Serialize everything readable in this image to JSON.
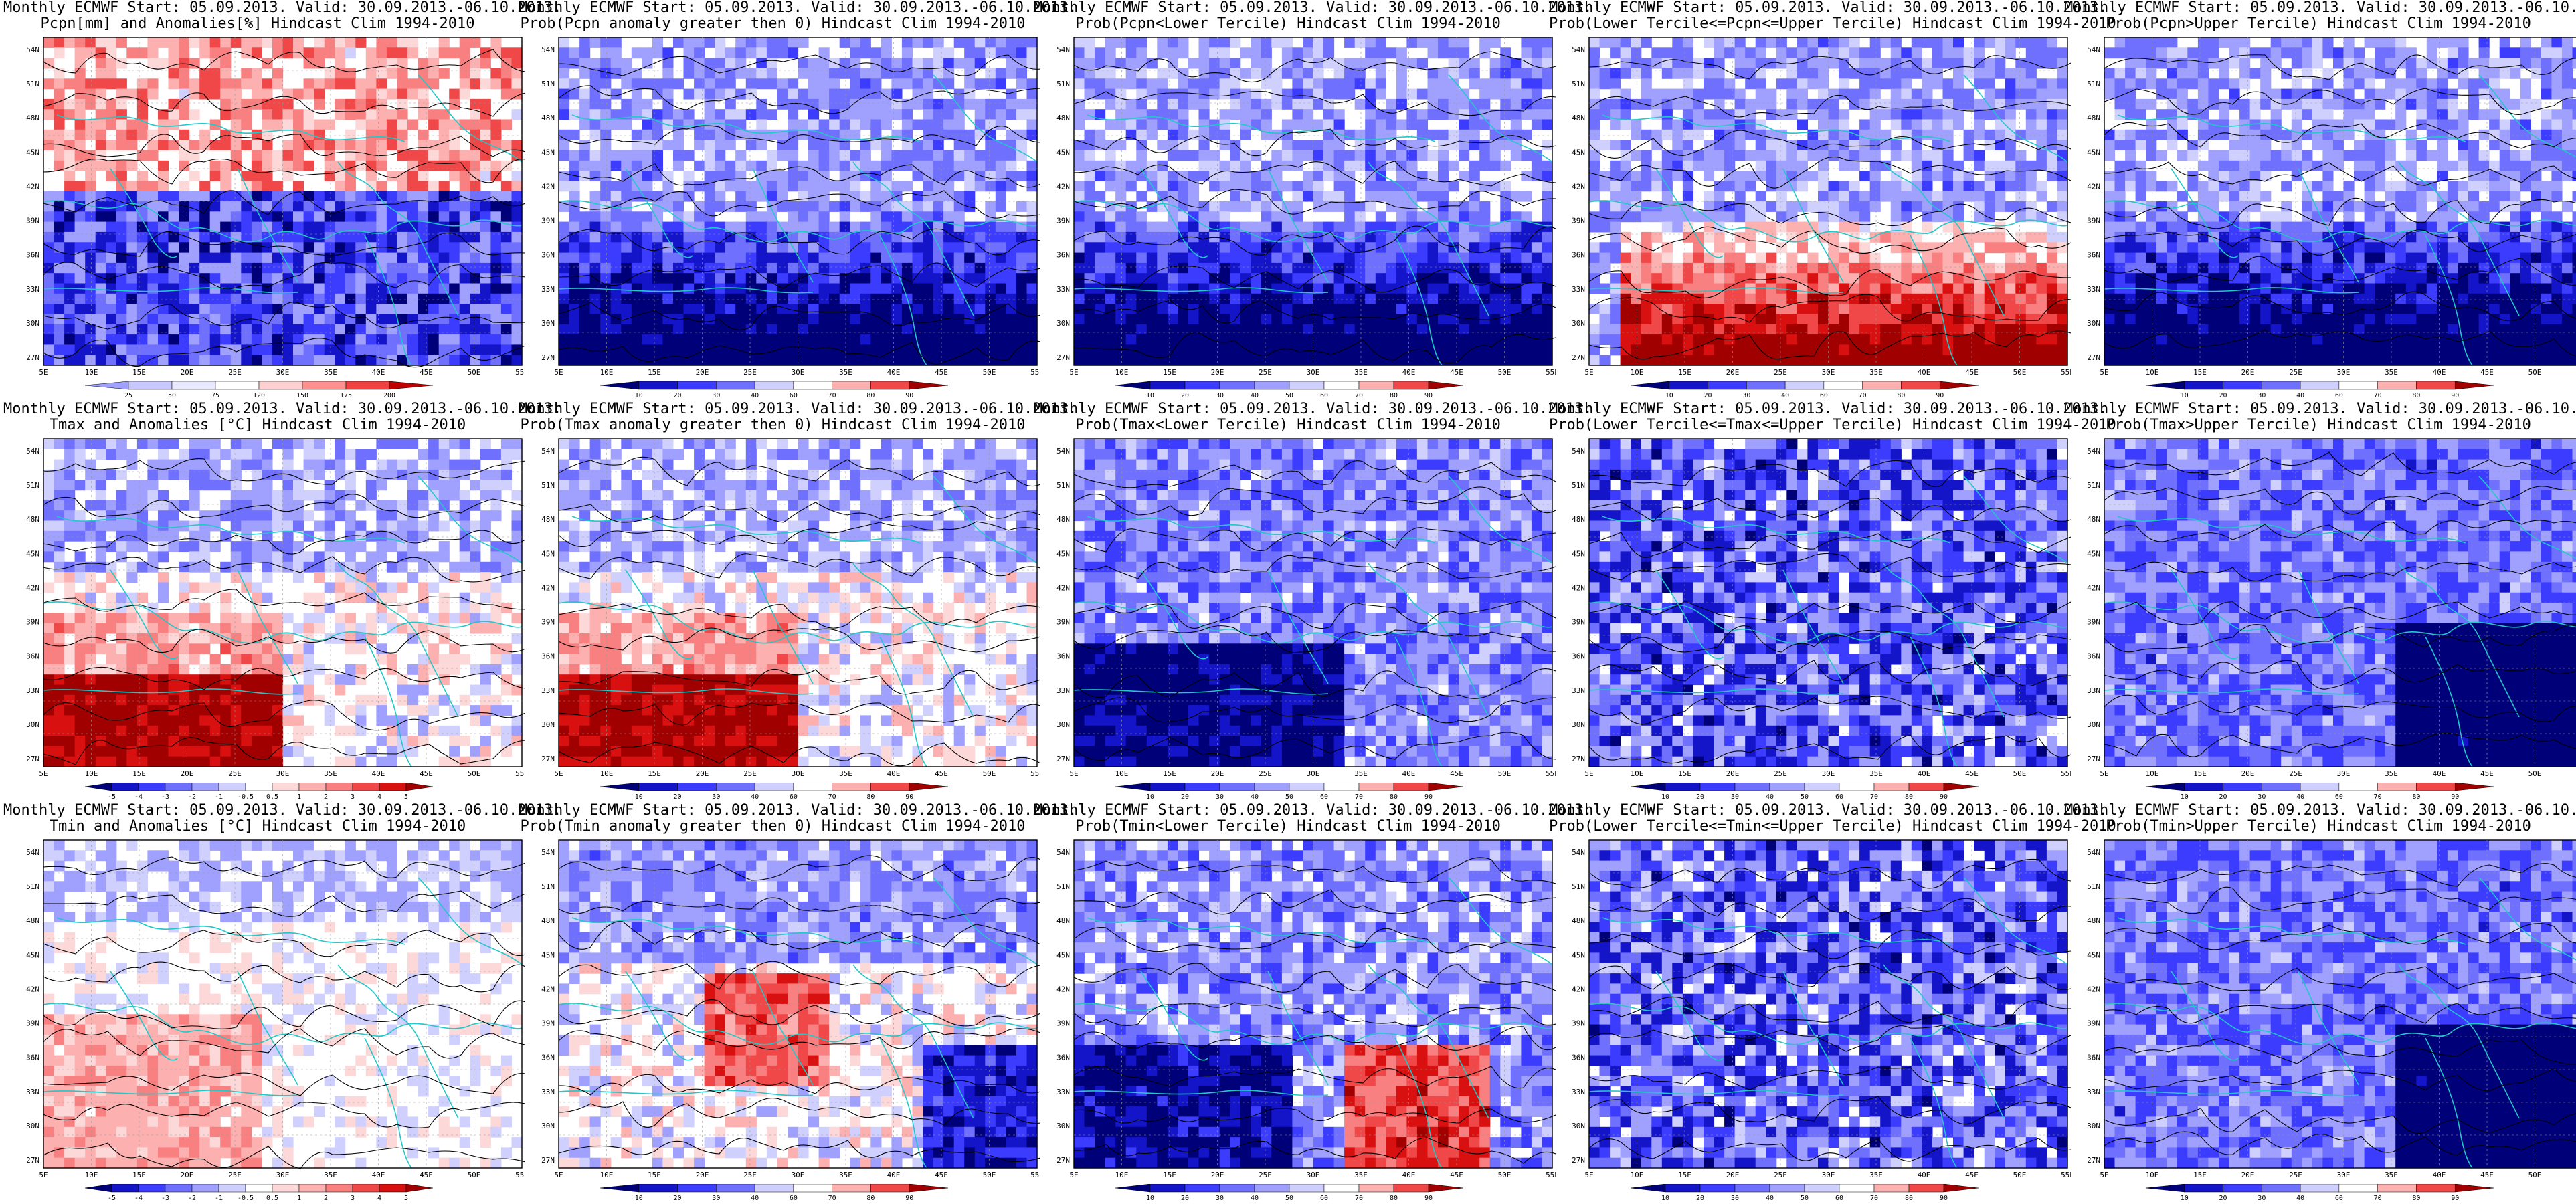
{
  "common": {
    "line1": "Monthly ECMWF Start: 05.09.2013. Valid: 30.09.2013.-06.10.2013.",
    "lat_labels": [
      "54N",
      "51N",
      "48N",
      "45N",
      "42N",
      "39N",
      "36N",
      "33N",
      "30N",
      "27N"
    ],
    "lon_labels": [
      "5E",
      "10E",
      "15E",
      "20E",
      "25E",
      "30E",
      "35E",
      "40E",
      "45E",
      "50E",
      "55E"
    ]
  },
  "rows": [
    {
      "variable": "Pcpn",
      "panels": [
        {
          "line2": "Pcpn[mm] and Anomalies[%] Hindcast Clim 1994-2010",
          "palette": "anomaly",
          "bias": "mixed",
          "cbar_labels": [
            "25",
            "50",
            "75",
            "120",
            "150",
            "175",
            "200"
          ]
        },
        {
          "line2": "Prob(Pcpn anomaly greater then 0) Hindcast Clim 1994-2010",
          "palette": "prob",
          "bias": "blue-south",
          "cbar_labels": [
            "10",
            "20",
            "30",
            "40",
            "60",
            "70",
            "80",
            "90"
          ]
        },
        {
          "line2": "Prob(Pcpn<Lower Tercile) Hindcast Clim 1994-2010",
          "palette": "prob",
          "bias": "blue-south",
          "cbar_labels": [
            "10",
            "20",
            "30",
            "40",
            "50",
            "60",
            "70",
            "80",
            "90"
          ]
        },
        {
          "line2": "Prob(Lower Tercile<=Pcpn<=Upper Tercile) Hindcast Clim 1994-2010",
          "palette": "prob",
          "bias": "red-south",
          "cbar_labels": [
            "10",
            "20",
            "30",
            "40",
            "60",
            "70",
            "80",
            "90"
          ]
        },
        {
          "line2": "Prob(Pcpn>Upper Tercile) Hindcast Clim 1994-2010",
          "palette": "prob",
          "bias": "blue-south",
          "cbar_labels": [
            "10",
            "20",
            "30",
            "40",
            "60",
            "70",
            "80",
            "90"
          ]
        }
      ]
    },
    {
      "variable": "Tmax",
      "panels": [
        {
          "line2": "Tmax and Anomalies [°C] Hindcast Clim 1994-2010",
          "palette": "temp",
          "bias": "red-southwest",
          "cbar_labels": [
            "-5",
            "-4",
            "-3",
            "-2",
            "-1",
            "-0.5",
            "0.5",
            "1",
            "2",
            "3",
            "4",
            "5"
          ]
        },
        {
          "line2": "Prob(Tmax anomaly greater then 0) Hindcast Clim 1994-2010",
          "palette": "prob",
          "bias": "red-southwest",
          "cbar_labels": [
            "10",
            "20",
            "30",
            "40",
            "60",
            "70",
            "80",
            "90"
          ]
        },
        {
          "line2": "Prob(Tmax<Lower Tercile) Hindcast Clim 1994-2010",
          "palette": "prob",
          "bias": "blue-southwest",
          "cbar_labels": [
            "10",
            "20",
            "30",
            "40",
            "50",
            "60",
            "70",
            "80",
            "90"
          ]
        },
        {
          "line2": "Prob(Lower Tercile<=Tmax<=Upper Tercile) Hindcast Clim 1994-2010",
          "palette": "prob",
          "bias": "blue-mixed",
          "cbar_labels": [
            "10",
            "20",
            "30",
            "40",
            "50",
            "60",
            "70",
            "80",
            "90"
          ]
        },
        {
          "line2": "Prob(Tmax>Upper Tercile) Hindcast Clim 1994-2010",
          "palette": "prob",
          "bias": "blue-southeast",
          "cbar_labels": [
            "10",
            "20",
            "30",
            "40",
            "60",
            "70",
            "80",
            "90"
          ]
        }
      ]
    },
    {
      "variable": "Tmin",
      "panels": [
        {
          "line2": "Tmin and Anomalies [°C] Hindcast Clim 1994-2010",
          "palette": "temp",
          "bias": "light-mixed",
          "cbar_labels": [
            "-5",
            "-4",
            "-3",
            "-2",
            "-1",
            "-0.5",
            "0.5",
            "1",
            "2",
            "3",
            "4",
            "5"
          ]
        },
        {
          "line2": "Prob(Tmin anomaly greater then 0) Hindcast Clim 1994-2010",
          "palette": "prob",
          "bias": "red-center",
          "cbar_labels": [
            "10",
            "20",
            "30",
            "40",
            "60",
            "70",
            "80",
            "90"
          ]
        },
        {
          "line2": "Prob(Tmin<Lower Tercile) Hindcast Clim 1994-2010",
          "palette": "prob",
          "bias": "blue-south-red",
          "cbar_labels": [
            "10",
            "20",
            "30",
            "40",
            "50",
            "60",
            "70",
            "80",
            "90"
          ]
        },
        {
          "line2": "Prob(Lower Tercile<=Tmin<=Upper Tercile) Hindcast Clim 1994-2010",
          "palette": "prob",
          "bias": "blue-mixed",
          "cbar_labels": [
            "10",
            "20",
            "30",
            "40",
            "50",
            "60",
            "70",
            "80",
            "90"
          ]
        },
        {
          "line2": "Prob(Tmin>Upper Tercile) Hindcast Clim 1994-2010",
          "palette": "prob",
          "bias": "blue-southeast",
          "cbar_labels": [
            "10",
            "20",
            "30",
            "40",
            "60",
            "70",
            "80",
            "90"
          ]
        }
      ]
    }
  ]
}
